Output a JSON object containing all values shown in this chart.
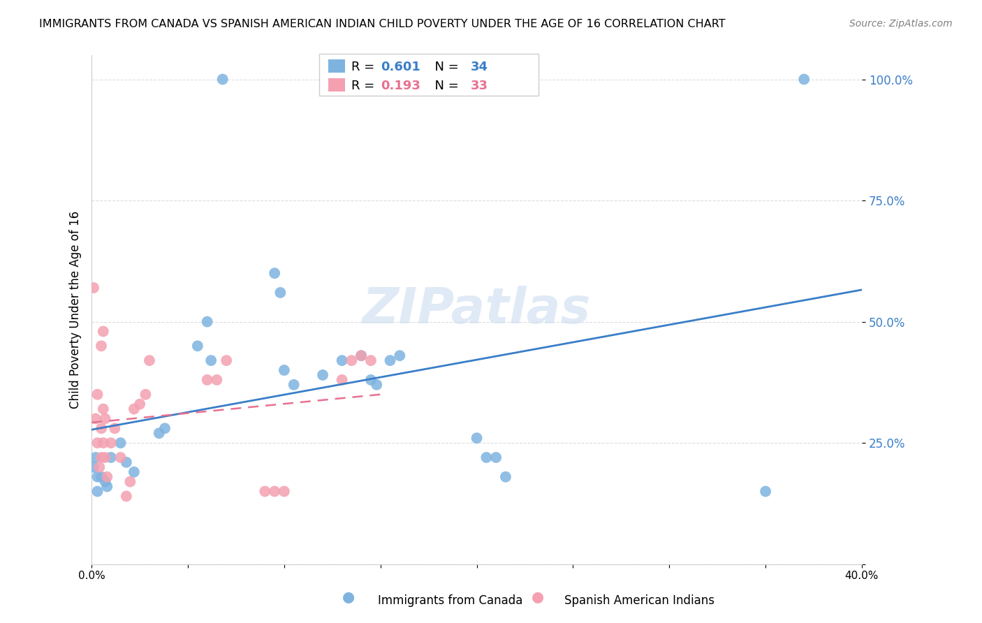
{
  "title": "IMMIGRANTS FROM CANADA VS SPANISH AMERICAN INDIAN CHILD POVERTY UNDER THE AGE OF 16 CORRELATION CHART",
  "source": "Source: ZipAtlas.com",
  "ylabel": "Child Poverty Under the Age of 16",
  "xlabel_blue": "Immigrants from Canada",
  "xlabel_pink": "Spanish American Indians",
  "xlim": [
    0.0,
    0.4
  ],
  "ylim": [
    0.0,
    1.05
  ],
  "yticks": [
    0.0,
    0.25,
    0.5,
    0.75,
    1.0
  ],
  "ytick_labels": [
    "",
    "25.0%",
    "50.0%",
    "75.0%",
    "100.0%"
  ],
  "xticks": [
    0.0,
    0.05,
    0.1,
    0.15,
    0.2,
    0.25,
    0.3,
    0.35,
    0.4
  ],
  "xtick_labels": [
    "0.0%",
    "",
    "",
    "",
    "",
    "",
    "",
    "",
    "40.0%"
  ],
  "R_blue": 0.601,
  "N_blue": 34,
  "R_pink": 0.193,
  "N_pink": 33,
  "blue_color": "#7eb3e0",
  "pink_color": "#f4a0b0",
  "blue_line_color": "#3a7ec8",
  "pink_line_color": "#e87090",
  "watermark": "ZIPatlas",
  "blue_scatter_x": [
    0.068,
    0.005,
    0.003,
    0.001,
    0.002,
    0.003,
    0.018,
    0.022,
    0.01,
    0.015,
    0.007,
    0.008,
    0.035,
    0.038,
    0.055,
    0.06,
    0.062,
    0.095,
    0.098,
    0.1,
    0.105,
    0.12,
    0.13,
    0.14,
    0.145,
    0.148,
    0.155,
    0.16,
    0.2,
    0.205,
    0.21,
    0.215,
    0.35,
    0.37
  ],
  "blue_scatter_y": [
    1.0,
    0.18,
    0.15,
    0.2,
    0.22,
    0.18,
    0.21,
    0.19,
    0.22,
    0.25,
    0.17,
    0.16,
    0.27,
    0.28,
    0.45,
    0.5,
    0.42,
    0.6,
    0.56,
    0.4,
    0.37,
    0.39,
    0.42,
    0.43,
    0.38,
    0.37,
    0.42,
    0.43,
    0.26,
    0.22,
    0.22,
    0.18,
    0.15,
    1.0
  ],
  "pink_scatter_x": [
    0.001,
    0.002,
    0.003,
    0.004,
    0.003,
    0.005,
    0.006,
    0.007,
    0.005,
    0.006,
    0.005,
    0.006,
    0.007,
    0.008,
    0.01,
    0.012,
    0.015,
    0.018,
    0.02,
    0.022,
    0.025,
    0.028,
    0.03,
    0.06,
    0.065,
    0.07,
    0.09,
    0.095,
    0.1,
    0.13,
    0.135,
    0.14,
    0.145
  ],
  "pink_scatter_y": [
    0.57,
    0.3,
    0.25,
    0.2,
    0.35,
    0.22,
    0.25,
    0.3,
    0.45,
    0.48,
    0.28,
    0.32,
    0.22,
    0.18,
    0.25,
    0.28,
    0.22,
    0.14,
    0.17,
    0.32,
    0.33,
    0.35,
    0.42,
    0.38,
    0.38,
    0.42,
    0.15,
    0.15,
    0.15,
    0.38,
    0.42,
    0.43,
    0.42
  ],
  "background_color": "#ffffff",
  "grid_color": "#dddddd"
}
